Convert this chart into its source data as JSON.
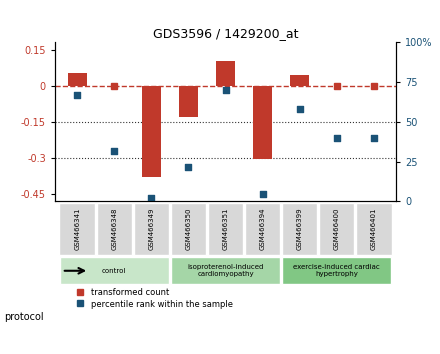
{
  "title": "GDS3596 / 1429200_at",
  "samples": [
    "GSM466341",
    "GSM466348",
    "GSM466349",
    "GSM466350",
    "GSM466351",
    "GSM466394",
    "GSM466399",
    "GSM466400",
    "GSM466401"
  ],
  "bar_values": [
    0.055,
    0.0,
    -0.38,
    -0.13,
    0.105,
    -0.305,
    0.045,
    0.0,
    0.0
  ],
  "scatter_values": [
    67,
    32,
    2,
    22,
    70,
    5,
    58,
    40,
    40
  ],
  "ylim_left": [
    -0.48,
    0.18
  ],
  "ylim_right": [
    0,
    100
  ],
  "yticks_left": [
    0.15,
    0,
    -0.15,
    -0.3,
    -0.45
  ],
  "yticks_right": [
    100,
    75,
    50,
    25,
    0
  ],
  "ytick_right_labels": [
    "100%",
    "75",
    "50",
    "25",
    "0"
  ],
  "groups": [
    {
      "label": "control",
      "start": 0,
      "end": 3,
      "color": "#c8e6c9"
    },
    {
      "label": "isoproterenol-induced\ncardiomyopathy",
      "start": 3,
      "end": 6,
      "color": "#a5d6a7"
    },
    {
      "label": "exercise-induced cardiac\nhypertrophy",
      "start": 6,
      "end": 9,
      "color": "#81c784"
    }
  ],
  "bar_color": "#c0392b",
  "scatter_color": "#1a5276",
  "dashed_line_color": "#c0392b",
  "dotted_line_color": "#333333",
  "protocol_label": "protocol",
  "legend_bar_label": "transformed count",
  "legend_scatter_label": "percentile rank within the sample"
}
